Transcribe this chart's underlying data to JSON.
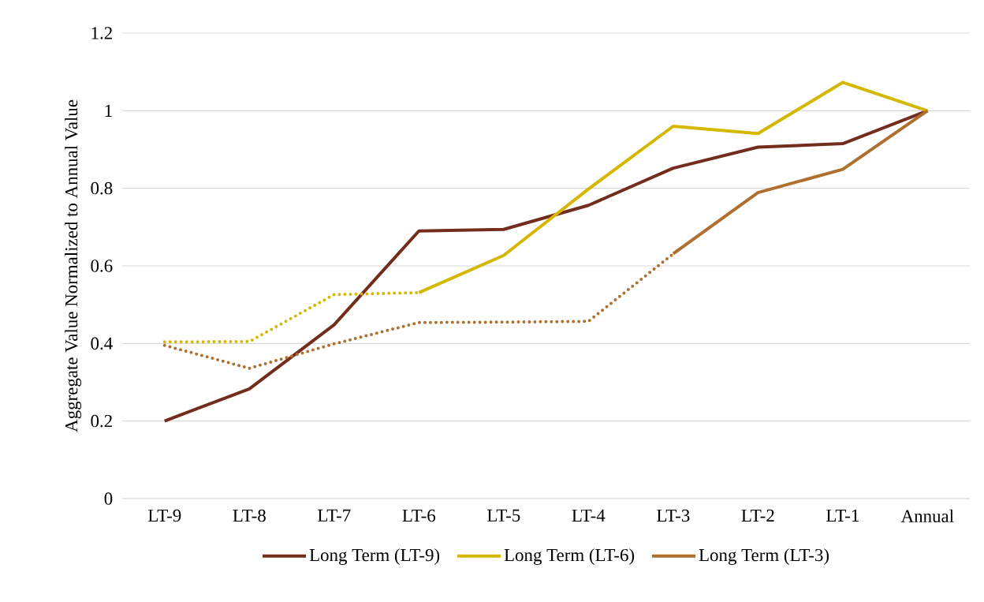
{
  "chart_data": {
    "type": "line",
    "ylabel": "Aggregate Value Normalized to Annual Value",
    "categories": [
      "LT-9",
      "LT-8",
      "LT-7",
      "LT-6",
      "LT-5",
      "LT-4",
      "LT-3",
      "LT-2",
      "LT-1",
      "Annual"
    ],
    "ylim": [
      0,
      1.2
    ],
    "yticks": [
      0,
      0.2,
      0.4,
      0.6,
      0.8,
      1,
      1.2
    ],
    "grid": "y",
    "legend": "bottom",
    "marker": "none",
    "series": [
      {
        "name": "Long Term (LT-9)",
        "color": "#722d1c",
        "line_style": "solid",
        "values": [
          0.2,
          0.283,
          0.448,
          0.69,
          0.694,
          0.756,
          0.852,
          0.906,
          0.915,
          1
        ]
      },
      {
        "color": "#d4b800",
        "line_style": "dotted",
        "values": [
          0.404,
          0.405,
          0.526,
          0.531,
          null,
          null,
          null,
          null,
          null,
          null
        ]
      },
      {
        "name": "Long Term (LT-6)",
        "color": "#d4b800",
        "line_style": "solid",
        "values": [
          null,
          null,
          null,
          0.531,
          0.627,
          0.798,
          0.96,
          0.941,
          1.073,
          1
        ]
      },
      {
        "color": "#ae6f2f",
        "line_style": "dotted",
        "values": [
          0.395,
          0.336,
          0.399,
          0.454,
          0.455,
          0.457,
          0.631,
          null,
          null,
          null
        ]
      },
      {
        "name": "Long Term (LT-3)",
        "color": "#ae6f2f",
        "line_style": "solid",
        "values": [
          null,
          null,
          null,
          null,
          null,
          null,
          0.631,
          0.789,
          0.849,
          1
        ]
      }
    ]
  }
}
